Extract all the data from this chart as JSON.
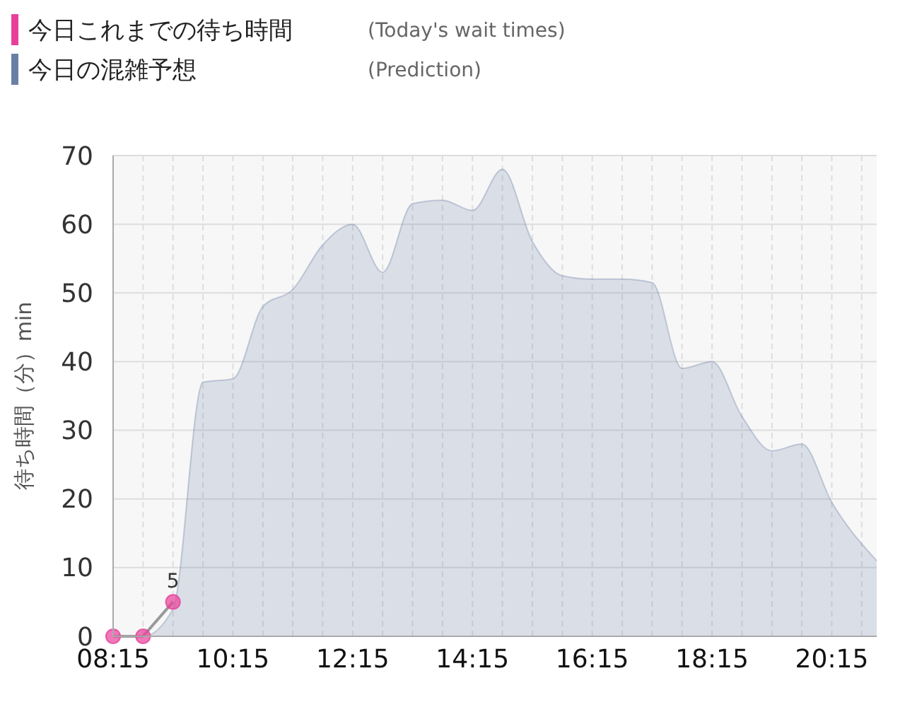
{
  "chart_data": {
    "type": "area",
    "ylabel": "待ち時間（分）min",
    "x": [
      8.25,
      8.75,
      9.25,
      9.75,
      10.25,
      10.75,
      11.25,
      11.75,
      12.25,
      12.75,
      13.25,
      13.75,
      14.25,
      14.75,
      15.25,
      15.75,
      16.25,
      16.75,
      17.25,
      17.75,
      18.25,
      18.75,
      19.25,
      19.75,
      20.25,
      21
    ],
    "series": [
      {
        "name": "今日これまでの待ち時間",
        "color": "#e8409a",
        "type": "scatter",
        "marker": "circle",
        "x": [
          8.25,
          8.75,
          9.25
        ],
        "values": [
          0,
          0,
          5
        ],
        "value_labels": [
          null,
          null,
          "5"
        ]
      },
      {
        "name": "今日の混雑予想",
        "color": "#6a7fa6",
        "values": [
          0,
          0,
          4,
          37,
          37.5,
          48,
          50.5,
          57,
          60,
          53,
          63,
          63.5,
          62,
          68,
          57.5,
          52.5,
          52,
          52,
          51.5,
          39,
          40,
          32,
          27,
          28,
          19.5,
          11
        ]
      }
    ],
    "annotations": [
      "(Today's wait times)",
      "(Prediction)"
    ],
    "xlim": [
      8.25,
      21
    ],
    "xticks": [
      {
        "value": 8.25,
        "label": "08:15"
      },
      {
        "value": 8.75,
        "label": null
      },
      {
        "value": 9.25,
        "label": null
      },
      {
        "value": 9.75,
        "label": null
      },
      {
        "value": 10.25,
        "label": "10:15"
      },
      {
        "value": 10.75,
        "label": null
      },
      {
        "value": 11.25,
        "label": null
      },
      {
        "value": 11.75,
        "label": null
      },
      {
        "value": 12.25,
        "label": "12:15"
      },
      {
        "value": 12.75,
        "label": null
      },
      {
        "value": 13.25,
        "label": null
      },
      {
        "value": 13.75,
        "label": null
      },
      {
        "value": 14.25,
        "label": "14:15"
      },
      {
        "value": 14.75,
        "label": null
      },
      {
        "value": 15.25,
        "label": null
      },
      {
        "value": 15.75,
        "label": null
      },
      {
        "value": 16.25,
        "label": "16:15"
      },
      {
        "value": 16.75,
        "label": null
      },
      {
        "value": 17.25,
        "label": null
      },
      {
        "value": 17.75,
        "label": null
      },
      {
        "value": 18.25,
        "label": "18:15"
      },
      {
        "value": 18.75,
        "label": null
      },
      {
        "value": 19.25,
        "label": null
      },
      {
        "value": 19.75,
        "label": null
      },
      {
        "value": 20.25,
        "label": "20:15"
      },
      {
        "value": 20.75,
        "label": null
      }
    ],
    "ylim": [
      0,
      70
    ],
    "yticks": [
      0,
      10,
      20,
      30,
      40,
      50,
      60,
      70
    ],
    "grid": true,
    "legend": "top left"
  }
}
